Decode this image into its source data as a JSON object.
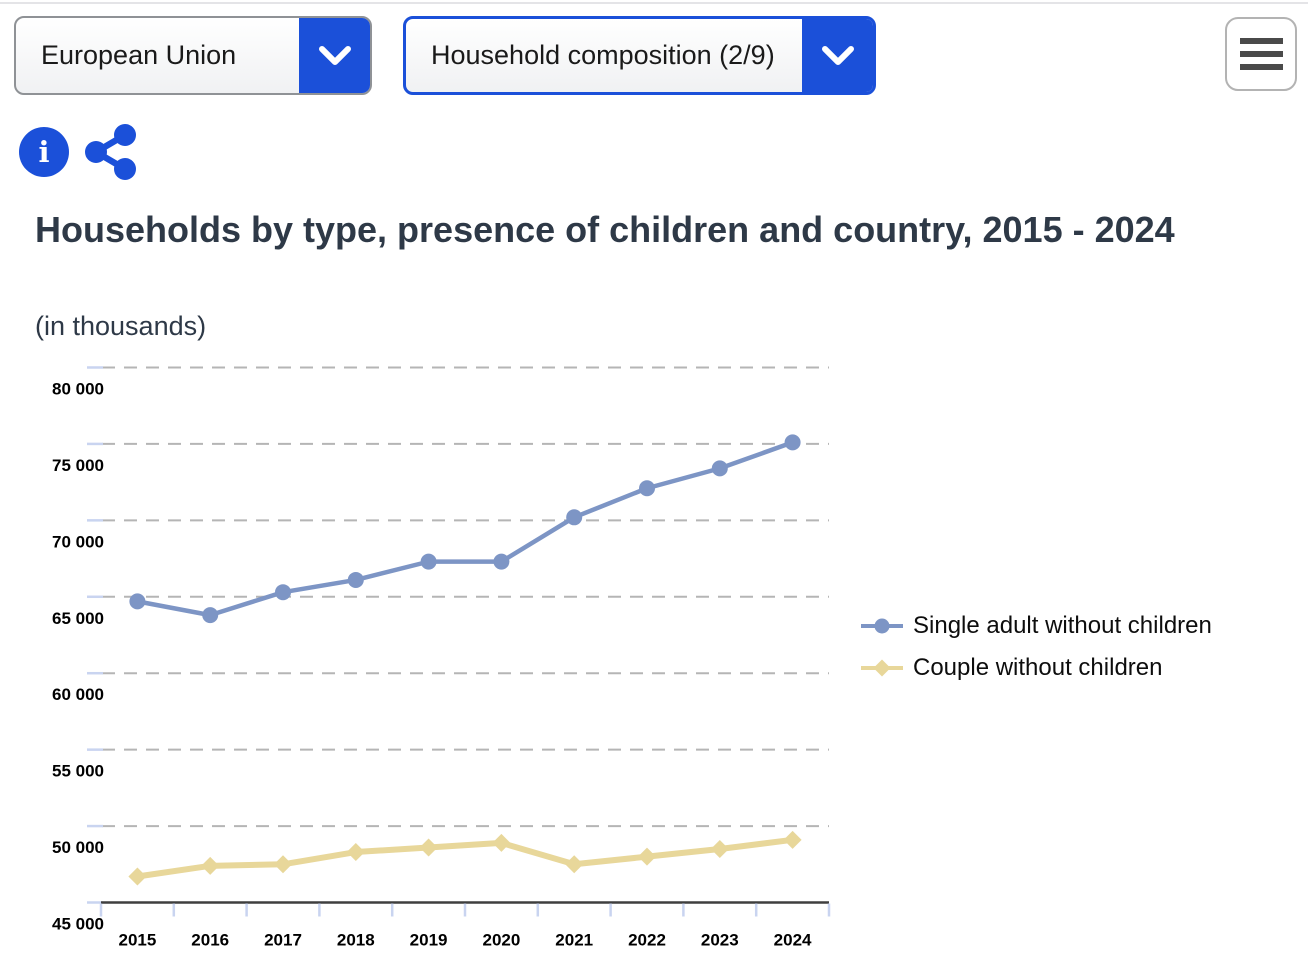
{
  "topbar": {
    "country_dropdown": {
      "value": "European Union"
    },
    "topic_dropdown": {
      "value": "Household composition (2/9)"
    }
  },
  "icons": {
    "info_glyph": "i"
  },
  "header": {
    "title": "Households by type, presence of children and country, 2015 - 2024",
    "subtitle": "(in thousands)"
  },
  "chart_data": {
    "type": "line",
    "title": "Households by type, presence of children and country, 2015 - 2024",
    "units": "(in thousands)",
    "categories": [
      "2015",
      "2016",
      "2017",
      "2018",
      "2019",
      "2020",
      "2021",
      "2022",
      "2023",
      "2024"
    ],
    "series": [
      {
        "name": "Single adult without children",
        "marker": "circle",
        "color": "#7d95c5",
        "values": [
          64700,
          63800,
          65300,
          66100,
          67300,
          67300,
          70200,
          72100,
          73400,
          75100
        ]
      },
      {
        "name": "Couple without children",
        "marker": "diamond",
        "color": "#e8d79a",
        "values": [
          46700,
          47400,
          47500,
          48300,
          48600,
          48900,
          47500,
          48000,
          48500,
          49100
        ]
      }
    ],
    "ylim": [
      45000,
      80000
    ],
    "ytick_step": 5000,
    "ytick_labels": [
      "45 000",
      "50 000",
      "55 000",
      "60 000",
      "65 000",
      "70 000",
      "75 000",
      "80 000"
    ],
    "grid": "horizontal-dashed",
    "legend_position": "right",
    "colors": {
      "grid": "#b5b5b5",
      "tick": "#c9d4f0",
      "axis": "#3f3f3f",
      "accent": "#1b50d9"
    }
  }
}
